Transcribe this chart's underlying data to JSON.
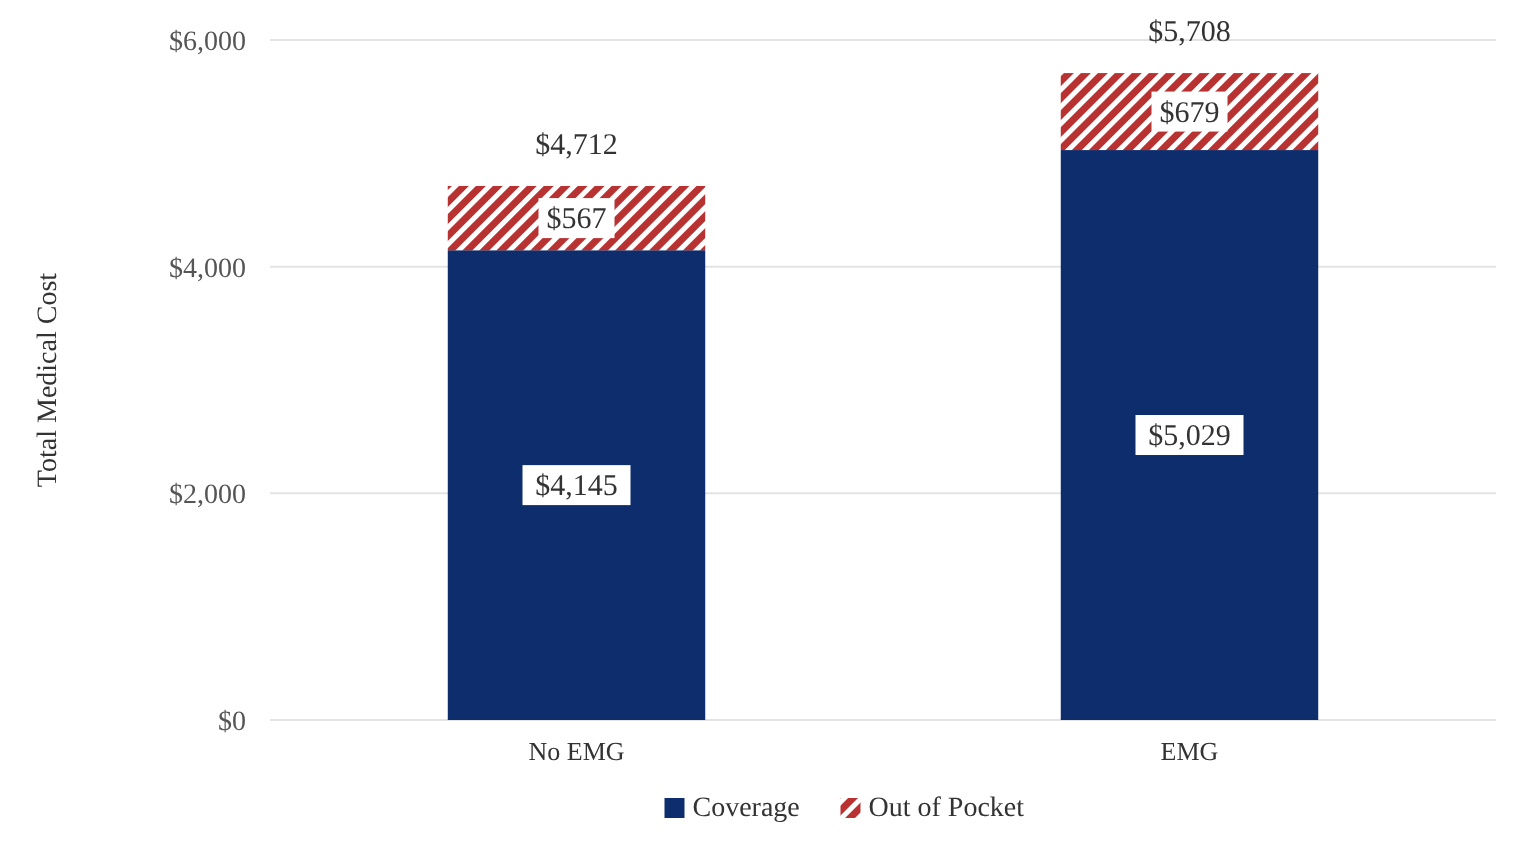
{
  "chart_data": {
    "type": "bar",
    "stacked": true,
    "ylabel": "Total Medical Cost",
    "categories": [
      "No EMG",
      "EMG"
    ],
    "series": [
      {
        "name": "Coverage",
        "color": "#0d2d6c",
        "values": [
          4145,
          5029
        ],
        "value_labels": [
          "$4,145",
          "$5,029"
        ]
      },
      {
        "name": "Out of Pocket",
        "color": "#b83232",
        "values": [
          567,
          679
        ],
        "value_labels": [
          "$567",
          "$679"
        ]
      }
    ],
    "totals": [
      "$4,712",
      "$5,708"
    ],
    "ylim": [
      0,
      6000
    ],
    "yticks": [
      {
        "value": 0,
        "label": "$0"
      },
      {
        "value": 2000,
        "label": "$2,000"
      },
      {
        "value": 4000,
        "label": "$4,000"
      },
      {
        "value": 6000,
        "label": "$6,000"
      }
    ],
    "grid": "y",
    "legend": "bottom"
  }
}
